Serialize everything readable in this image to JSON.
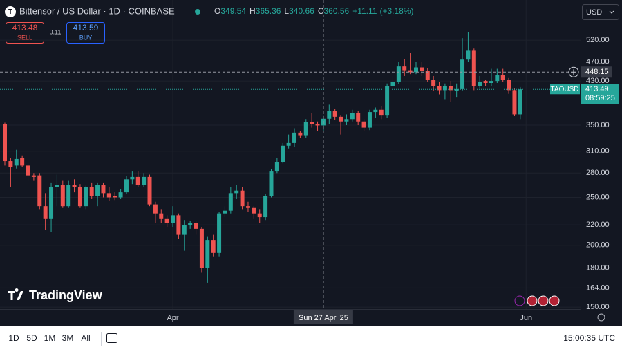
{
  "chart_data": {
    "type": "candlestick",
    "title": "Bittensor / US Dollar · 1D · COINBASE",
    "legend_labels": {
      "open": "O",
      "high": "H",
      "low": "L",
      "close": "C"
    },
    "change": {
      "value": 11.11,
      "label": "+11.11"
    },
    "change_pct": {
      "value": 3.18,
      "label": "(+3.18%)"
    },
    "legend_index": 55,
    "symbol": "TAOUSD",
    "countdown": "08:59:25",
    "currency": "USD",
    "sell": {
      "price": 413.48,
      "label": "SELL"
    },
    "spread": 0.11,
    "buy": {
      "price": 413.59,
      "label": "BUY"
    },
    "watermark": "TradingView",
    "crosshair": {
      "x": {
        "value": 55,
        "label": "Sun 27 Apr '25"
      },
      "y": 448.15
    },
    "up_color": "#26a69a",
    "down_color": "#ef5350",
    "log_scale": true,
    "grid": true,
    "xlim": [
      -0.835,
      99.4
    ],
    "xticks": [
      {
        "value": 29,
        "label": "Apr"
      },
      {
        "value": 90,
        "label": "Jun"
      }
    ],
    "ylim": [
      148.6,
      627
    ],
    "yticks": [
      {
        "value": 150,
        "label": "150.00"
      },
      {
        "value": 164,
        "label": "164.00"
      },
      {
        "value": 180,
        "label": "180.00"
      },
      {
        "value": 200,
        "label": "200.00"
      },
      {
        "value": 220,
        "label": "220.00"
      },
      {
        "value": 250,
        "label": "250.00"
      },
      {
        "value": 280,
        "label": "280.00"
      },
      {
        "value": 310,
        "label": "310.00"
      },
      {
        "value": 350,
        "label": "350.00"
      },
      {
        "value": 430,
        "label": "430.00"
      },
      {
        "value": 470,
        "label": "470.00"
      },
      {
        "value": 520,
        "label": "520.00"
      }
    ],
    "open": [
      352,
      296,
      290,
      300,
      290,
      277,
      277,
      240,
      226,
      262,
      265,
      240,
      265,
      262,
      240,
      262,
      252,
      265,
      255,
      252,
      250,
      256,
      272,
      275,
      265,
      275,
      242,
      232,
      226,
      222,
      230,
      210,
      220,
      222,
      216,
      180,
      205,
      193,
      232,
      235,
      255,
      258,
      240,
      238,
      232,
      228,
      252,
      282,
      295,
      318,
      322,
      338,
      334,
      355,
      352,
      349.54,
      360.56,
      374,
      364,
      356,
      360,
      370,
      356,
      346,
      372,
      376,
      366,
      420,
      428,
      460,
      452,
      448,
      458,
      450,
      432,
      420,
      412,
      420,
      410,
      414,
      475,
      495,
      420,
      430,
      426,
      430,
      442,
      432,
      412,
      368
    ],
    "high": [
      354,
      300,
      312,
      304,
      293,
      280,
      280,
      255,
      268,
      278,
      270,
      270,
      272,
      266,
      264,
      268,
      268,
      268,
      262,
      256,
      260,
      276,
      282,
      282,
      280,
      278,
      245,
      236,
      230,
      240,
      232,
      225,
      224,
      224,
      218,
      208,
      210,
      234,
      240,
      262,
      265,
      262,
      245,
      240,
      236,
      254,
      285,
      300,
      322,
      335,
      345,
      340,
      360,
      370,
      356,
      365.36,
      385,
      378,
      366,
      368,
      376,
      374,
      360,
      376,
      380,
      382,
      425,
      440,
      470,
      476,
      490,
      470,
      470,
      456,
      440,
      428,
      425,
      430,
      425,
      525,
      540,
      500,
      440,
      432,
      455,
      455,
      455,
      436,
      415,
      418
    ],
    "low": [
      290,
      262,
      286,
      288,
      270,
      270,
      236,
      215,
      213,
      240,
      238,
      238,
      256,
      238,
      236,
      248,
      240,
      250,
      246,
      247,
      248,
      254,
      266,
      262,
      262,
      240,
      222,
      222,
      218,
      218,
      206,
      195,
      216,
      210,
      176,
      168,
      190,
      190,
      228,
      232,
      248,
      236,
      234,
      226,
      222,
      225,
      250,
      280,
      293,
      314,
      316,
      330,
      330,
      346,
      340,
      340.66,
      352,
      358,
      335,
      350,
      356,
      350,
      340,
      342,
      362,
      360,
      362,
      415,
      424,
      440,
      444,
      444,
      440,
      428,
      410,
      404,
      395,
      390,
      398,
      410,
      470,
      412,
      415,
      420,
      420,
      426,
      428,
      405,
      365,
      360
    ],
    "close": [
      296,
      288,
      299,
      290,
      277,
      275,
      240,
      226,
      262,
      265,
      240,
      265,
      262,
      240,
      262,
      252,
      265,
      255,
      250,
      250,
      256,
      272,
      275,
      265,
      275,
      242,
      232,
      226,
      222,
      230,
      210,
      220,
      222,
      216,
      180,
      205,
      193,
      232,
      235,
      255,
      258,
      240,
      238,
      232,
      228,
      252,
      282,
      295,
      318,
      322,
      338,
      334,
      355,
      352,
      349.45,
      360.56,
      374,
      364,
      356,
      360,
      370,
      356,
      346,
      372,
      376,
      366,
      420,
      428,
      460,
      452,
      448,
      458,
      450,
      432,
      420,
      412,
      420,
      412,
      414,
      475,
      495,
      420,
      428,
      426,
      430,
      442,
      432,
      412,
      368,
      413.49
    ]
  },
  "toolbar": {
    "ranges": [
      "1D",
      "5D",
      "1M",
      "3M",
      "All"
    ],
    "clock": "15:00:35 UTC"
  }
}
